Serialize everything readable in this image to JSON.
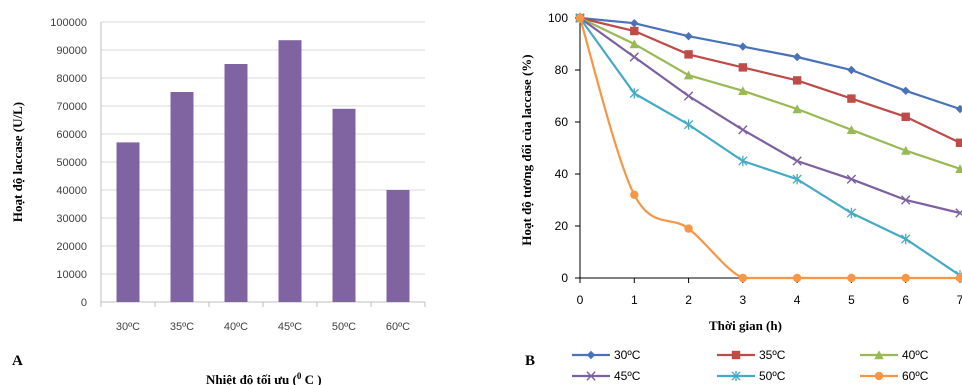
{
  "panels": {
    "a_label": "A",
    "b_label": "B"
  },
  "chart_data": [
    {
      "type": "bar",
      "title": "",
      "categories": [
        "30ºC",
        "35ºC",
        "40ºC",
        "45ºC",
        "50ºC",
        "60ºC"
      ],
      "values": [
        57000,
        75000,
        85000,
        93500,
        69000,
        40000
      ],
      "ylabel": "Hoạt độ laccase (U/L)",
      "xlabel": "Nhiệt độ tối ưu (",
      "xlabel_sup": "0",
      "xlabel_end": " C  )",
      "ylim": [
        0,
        100000
      ],
      "yticks": [
        "0",
        "10000",
        "20000",
        "30000",
        "40000",
        "50000",
        "60000",
        "70000",
        "80000",
        "90000",
        "100000"
      ],
      "bar_color": "#8064a2",
      "grid": true
    },
    {
      "type": "line",
      "title": "",
      "x": [
        0,
        1,
        2,
        3,
        4,
        5,
        6,
        7
      ],
      "xticks": [
        "0",
        "1",
        "2",
        "3",
        "4",
        "5",
        "6",
        "7"
      ],
      "yticks": [
        "0",
        "20",
        "40",
        "60",
        "80",
        "100"
      ],
      "xlim": [
        0,
        7
      ],
      "ylim": [
        0,
        100
      ],
      "xlabel": "Thời gian  (h)",
      "ylabel": "Hoạt độ tương đối của laccase (%)",
      "legend_position": "bottom",
      "series": [
        {
          "name": "30ºC",
          "color": "#4a72b8",
          "marker": "diamond",
          "values": [
            100,
            98,
            93,
            89,
            85,
            80,
            72,
            65
          ]
        },
        {
          "name": "35ºC",
          "color": "#be4b48",
          "marker": "square",
          "values": [
            100,
            95,
            86,
            81,
            76,
            69,
            62,
            52
          ]
        },
        {
          "name": "40ºC",
          "color": "#98b954",
          "marker": "triangle",
          "values": [
            100,
            90,
            78,
            72,
            65,
            57,
            49,
            42
          ]
        },
        {
          "name": "45ºC",
          "color": "#7d60a0",
          "marker": "x",
          "values": [
            100,
            85,
            70,
            57,
            45,
            38,
            30,
            25
          ]
        },
        {
          "name": "50ºC",
          "color": "#46aac5",
          "marker": "star",
          "values": [
            100,
            71,
            59,
            45,
            38,
            25,
            15,
            1
          ]
        },
        {
          "name": "60ºC",
          "color": "#f79646",
          "marker": "circle",
          "values": [
            100,
            32,
            19,
            0,
            0,
            0,
            0,
            0
          ]
        }
      ]
    }
  ]
}
